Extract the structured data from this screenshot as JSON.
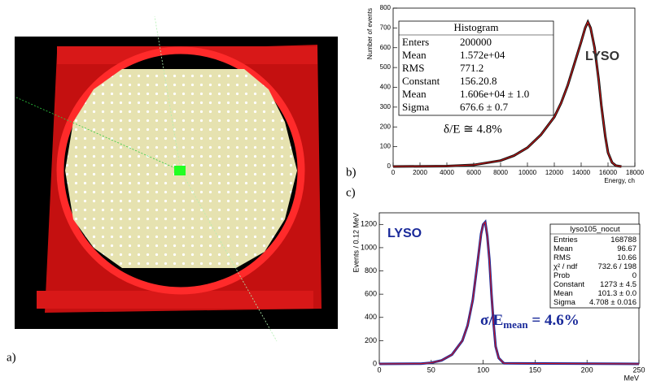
{
  "panel_a": {
    "label": "a)"
  },
  "chart_data": [
    {
      "type": "line",
      "panel_label": "b)",
      "xlabel": "Energy, ch",
      "ylabel": "Number of events",
      "annotation": "LYSO",
      "resolution": "δ/E ≅ 4.8%",
      "stats_title": "Histogram",
      "stats": [
        [
          "Enters",
          "200000"
        ],
        [
          "Mean",
          "1.572e+04"
        ],
        [
          "RMS",
          "771.2"
        ],
        [
          "Constant",
          "156.20.8"
        ],
        [
          "Mean",
          "1.606e+04 ± 1.0"
        ],
        [
          "Sigma",
          "676.6 ± 0.7"
        ]
      ],
      "x": [
        0,
        4000,
        6000,
        8000,
        9000,
        10000,
        11000,
        12000,
        12500,
        13000,
        13500,
        14000,
        14300,
        14500,
        14700,
        15000,
        15300,
        15500,
        15800,
        16000,
        16300,
        16600,
        17000
      ],
      "values": [
        0,
        2,
        8,
        30,
        55,
        95,
        160,
        250,
        320,
        410,
        520,
        630,
        700,
        730,
        700,
        600,
        440,
        310,
        150,
        70,
        20,
        4,
        0
      ],
      "color": "#111111",
      "fit_color": "#e01818",
      "xlim": [
        0,
        18000
      ],
      "xticks": [
        0,
        2000,
        4000,
        6000,
        8000,
        10000,
        12000,
        14000,
        16000,
        18000
      ],
      "ylim": [
        0,
        800
      ],
      "yticks": [
        0,
        100,
        200,
        300,
        400,
        500,
        600,
        700,
        800
      ]
    },
    {
      "type": "line",
      "panel_label": "c)",
      "xlabel": "MeV",
      "ylabel": "Events / 0.12 MeV",
      "annotation": "LYSO",
      "resolution_main": "σ/E",
      "resolution_sub": "mean",
      "resolution_tail": " = 4.6%",
      "stats_title": "lyso105_nocut",
      "stats": [
        [
          "Entries",
          "168788"
        ],
        [
          "Mean",
          "96.67"
        ],
        [
          "RMS",
          "10.66"
        ],
        [
          "χ² / ndf",
          "732.6 / 198"
        ],
        [
          "Prob",
          "0"
        ],
        [
          "Constant",
          "1273 ± 4.5"
        ],
        [
          "Mean",
          "101.3 ± 0.0"
        ],
        [
          "Sigma",
          "4.708 ± 0.016"
        ]
      ],
      "x": [
        0,
        40,
        50,
        60,
        70,
        80,
        85,
        90,
        95,
        98,
        100,
        102,
        104,
        106,
        108,
        110,
        112,
        115,
        120,
        250
      ],
      "values": [
        0,
        2,
        10,
        30,
        80,
        200,
        330,
        550,
        900,
        1120,
        1200,
        1220,
        1100,
        900,
        600,
        350,
        150,
        50,
        5,
        0
      ],
      "color": "#1a2a9a",
      "fit_color": "#e01818",
      "xlim": [
        0,
        250
      ],
      "xticks": [
        0,
        50,
        100,
        150,
        200,
        250
      ],
      "ylim": [
        0,
        1300
      ],
      "yticks": [
        0,
        200,
        400,
        600,
        800,
        1000,
        1200
      ]
    }
  ]
}
